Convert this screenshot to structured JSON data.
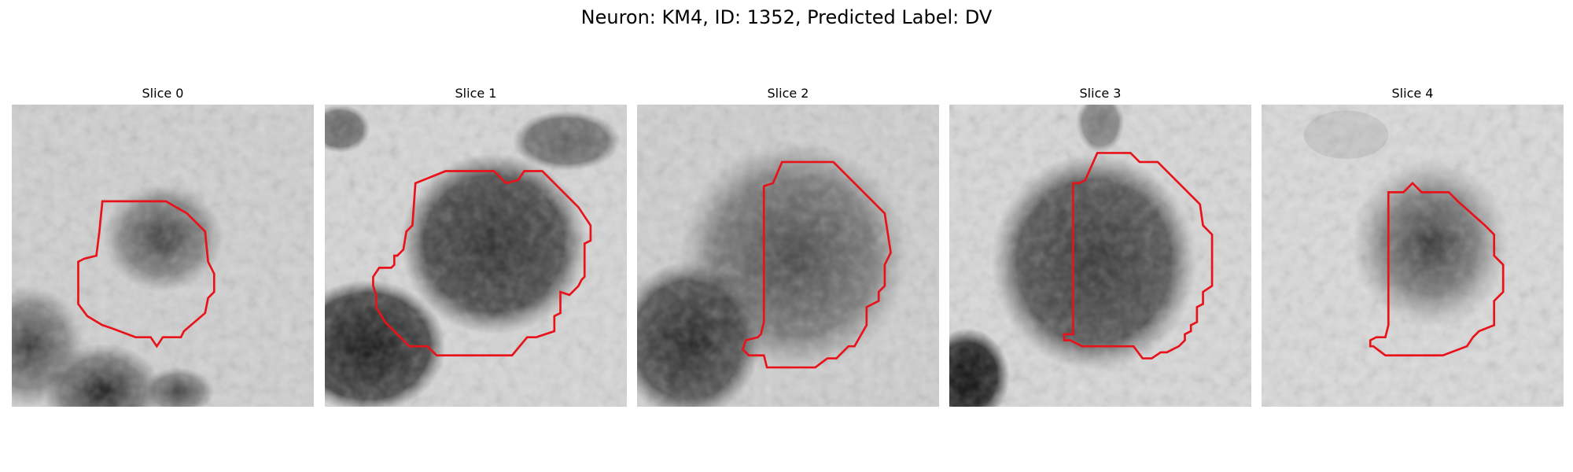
{
  "figure": {
    "title": "Neuron: KM4, ID: 1352, Predicted Label: DV"
  },
  "panels": [
    {
      "title": "Slice 0"
    },
    {
      "title": "Slice 1"
    },
    {
      "title": "Slice 2"
    },
    {
      "title": "Slice 3"
    },
    {
      "title": "Slice 4"
    }
  ],
  "colors": {
    "contour": "#e8131a",
    "background": "#ffffff"
  }
}
